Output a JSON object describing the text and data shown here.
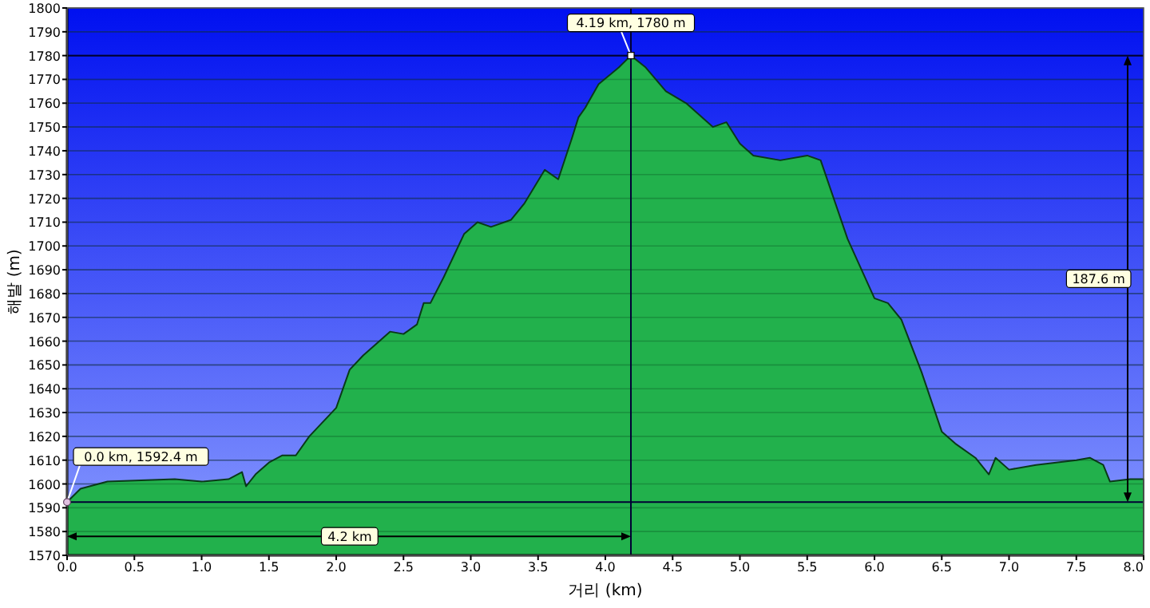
{
  "chart_data": {
    "type": "area",
    "xlabel": "거리 (km)",
    "ylabel": "해발 (m)",
    "x": [
      0,
      0.1,
      0.3,
      0.8,
      1.0,
      1.2,
      1.3,
      1.33,
      1.4,
      1.5,
      1.6,
      1.7,
      1.8,
      2.0,
      2.1,
      2.2,
      2.4,
      2.5,
      2.6,
      2.65,
      2.7,
      2.8,
      2.95,
      3.05,
      3.15,
      3.3,
      3.4,
      3.55,
      3.65,
      3.75,
      3.8,
      3.85,
      3.95,
      4.1,
      4.19,
      4.3,
      4.45,
      4.6,
      4.8,
      4.9,
      5.0,
      5.1,
      5.3,
      5.5,
      5.6,
      5.8,
      6.0,
      6.1,
      6.2,
      6.35,
      6.5,
      6.6,
      6.75,
      6.85,
      6.9,
      7.0,
      7.2,
      7.5,
      7.6,
      7.7,
      7.75,
      7.9,
      8.0
    ],
    "values": [
      1592.4,
      1598,
      1601,
      1602,
      1601,
      1602,
      1605,
      1599,
      1604,
      1609,
      1612,
      1612,
      1620,
      1632,
      1648,
      1654,
      1664,
      1663,
      1667,
      1676,
      1676,
      1687,
      1705,
      1710,
      1708,
      1711,
      1718,
      1732,
      1728,
      1745,
      1754,
      1758,
      1768,
      1775,
      1780,
      1775,
      1765,
      1760,
      1750,
      1752,
      1743,
      1738,
      1736,
      1738,
      1736,
      1703,
      1678,
      1676,
      1669,
      1647,
      1622,
      1617,
      1611,
      1604,
      1611,
      1606,
      1608,
      1610,
      1611,
      1608,
      1601,
      1602,
      1602
    ],
    "color": "#22b14c",
    "xlim": [
      0,
      8
    ],
    "xticks": [
      {
        "value": 0,
        "label": "0.0"
      },
      0.5,
      {
        "value": 1,
        "label": "1.0"
      },
      1.5,
      {
        "value": 2,
        "label": "2.0"
      },
      2.5,
      {
        "value": 3,
        "label": "3.0"
      },
      3.5,
      {
        "value": 4,
        "label": "4.0"
      },
      4.5,
      {
        "value": 5,
        "label": "5.0"
      },
      5.5,
      {
        "value": 6,
        "label": "6.0"
      },
      6.5,
      {
        "value": 7,
        "label": "7.0"
      },
      7.5,
      {
        "value": 8,
        "label": "8.0"
      }
    ],
    "ylim": [
      1570,
      1800
    ],
    "yticks": [
      1570,
      1580,
      1590,
      1600,
      1610,
      1620,
      1630,
      1640,
      1650,
      1660,
      1670,
      1680,
      1690,
      1700,
      1710,
      1720,
      1730,
      1740,
      1750,
      1760,
      1770,
      1780,
      1790,
      1800
    ],
    "grid": "y",
    "ref_lines": [
      {
        "axis": "y",
        "value": 1780,
        "color": "#000033"
      },
      {
        "axis": "y",
        "value": 1592.4,
        "color": "#000033"
      },
      {
        "axis": "x",
        "value": 4.19,
        "color": "#000033"
      }
    ],
    "annotations": [
      {
        "text": "4.19 km, 1780 m",
        "x": 4.19,
        "y": 1780
      },
      {
        "text": "0.0 km, 1592.4 m",
        "x": 0,
        "y": 1592.4
      },
      {
        "text": "4.2 km",
        "x": 2.1,
        "y": 1578
      },
      "187.6 m"
    ]
  }
}
